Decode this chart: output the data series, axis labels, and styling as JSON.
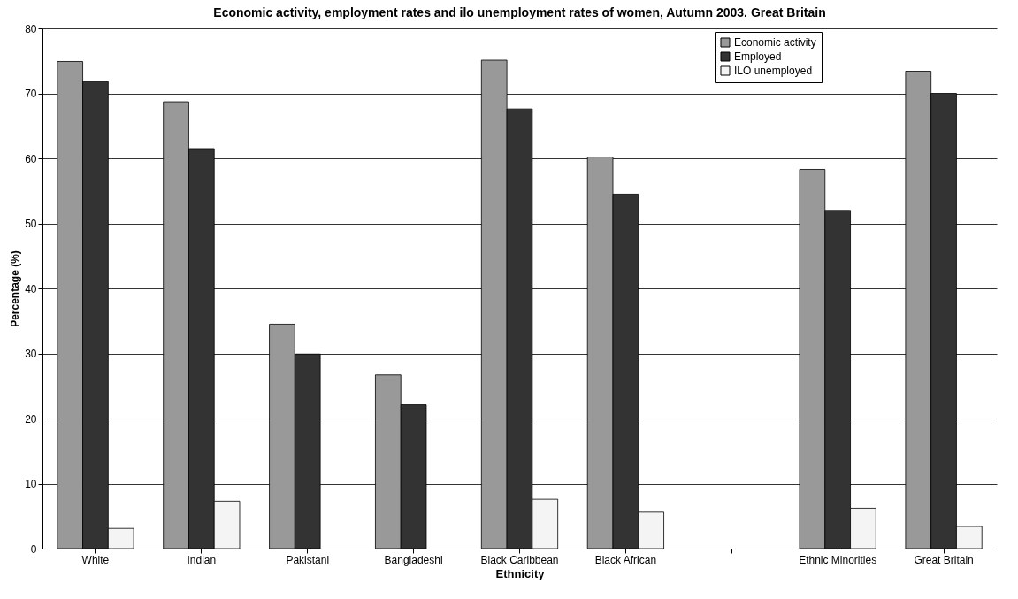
{
  "chart_data": {
    "type": "bar",
    "title": "Economic activity, employment rates and ilo unemployment rates of women, Autumn 2003. Great Britain",
    "xlabel": "Ethnicity",
    "ylabel": "Percentage (%)",
    "categories": [
      "White",
      "Indian",
      "Pakistani",
      "Bangladeshi",
      "Black Caribbean",
      "Black African",
      null,
      "Ethnic Minorities",
      "Great Britain"
    ],
    "series": [
      {
        "name": "Economic activity",
        "color": "#999999",
        "values": [
          74.9,
          68.7,
          34.5,
          26.7,
          75.1,
          60.2,
          null,
          58.3,
          73.4
        ]
      },
      {
        "name": "Employed",
        "color": "#333333",
        "values": [
          71.8,
          61.5,
          29.9,
          22.1,
          67.6,
          54.5,
          null,
          52.0,
          70.0
        ]
      },
      {
        "name": "ILO unemployed",
        "color": "#f4f4f4",
        "values": [
          3.1,
          7.3,
          null,
          null,
          7.6,
          5.6,
          null,
          6.2,
          3.4
        ]
      }
    ],
    "ylim": [
      0,
      80
    ],
    "yticks": [
      0,
      10,
      20,
      30,
      40,
      50,
      60,
      70,
      80
    ],
    "grid": "y",
    "legend": "top right"
  }
}
